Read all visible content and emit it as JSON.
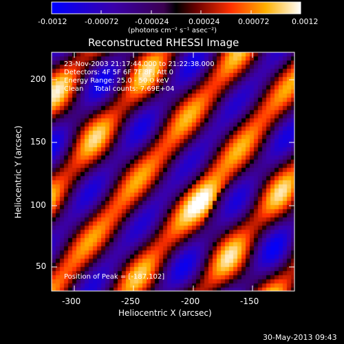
{
  "colorbar": {
    "ticks": [
      "-0.0012",
      "-0.00072",
      "-0.00024",
      "0.00024",
      "0.00072",
      "0.0012"
    ],
    "units": "(photons cm⁻² s⁻¹ asec⁻²)"
  },
  "image": {
    "title": "Reconstructed RHESSI Image",
    "xlabel": "Heliocentric X (arcsec)",
    "ylabel": "Heliocentric Y (arcsec)",
    "x_ticks": [
      "-300",
      "-250",
      "-200",
      "-150"
    ],
    "y_ticks": [
      "200",
      "150",
      "100",
      "50"
    ],
    "info_lines": [
      "23-Nov-2003 21:17:44.000 to 21:22:38.000",
      "Detectors: 4F 5F 6F 7F 8F, Att 0",
      "Energy Range: 25.0 - 50.0 keV",
      "Clean     Total counts: 7.69E+04"
    ],
    "peak_label": "Position of Peak = [-187,102]"
  },
  "footer": {
    "date": "30-May-2013 09:43"
  },
  "colors": {
    "background": "#000000",
    "negative_high": "#0000ff",
    "positive_high": "#ffffff"
  }
}
